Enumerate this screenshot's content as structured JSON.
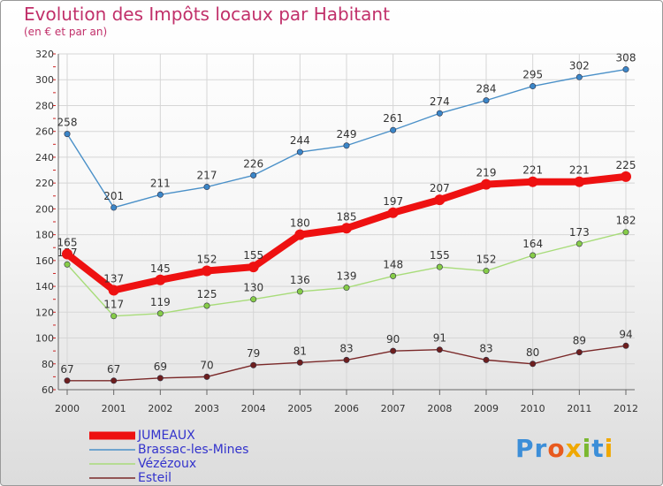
{
  "title": "Evolution des Impôts locaux par Habitant",
  "subtitle": "(en € et par an)",
  "logo": {
    "text": "Proxiti",
    "colors": [
      "#3c8ed8",
      "#3c8ed8",
      "#e85a1e",
      "#f0a800",
      "#7ab830",
      "#3c8ed8",
      "#f0a800"
    ]
  },
  "chart_data": {
    "type": "line",
    "x": [
      "2000",
      "2001",
      "2002",
      "2003",
      "2004",
      "2005",
      "2006",
      "2007",
      "2008",
      "2009",
      "2010",
      "2011",
      "2012"
    ],
    "ylim": [
      60,
      320
    ],
    "yticks": [
      "60",
      "80",
      "100",
      "120",
      "140",
      "160",
      "180",
      "200",
      "220",
      "240",
      "260",
      "280",
      "300",
      "320"
    ],
    "grid": true,
    "legend_position": "bottom-left",
    "series": [
      {
        "name": "Brassac-les-Mines",
        "color": "#4a90c8",
        "point_color": "#3b86c8",
        "values": [
          258,
          201,
          211,
          217,
          226,
          244,
          249,
          261,
          274,
          284,
          295,
          302,
          308
        ],
        "labels": [
          "258",
          "201",
          "211",
          "217",
          "226",
          "244",
          "249",
          "261",
          "274",
          "284",
          "295",
          "302",
          "308"
        ]
      },
      {
        "name": "Vézézoux",
        "color": "#a8dc7a",
        "point_color": "#86cc48",
        "values": [
          157,
          117,
          119,
          125,
          130,
          136,
          139,
          148,
          155,
          152,
          164,
          173,
          182
        ],
        "labels": [
          "157",
          "117",
          "119",
          "125",
          "130",
          "136",
          "139",
          "148",
          "155",
          "152",
          "164",
          "173",
          "182"
        ]
      },
      {
        "name": "Esteil",
        "color": "#7a2828",
        "point_color": "#6e1e1e",
        "values": [
          67,
          67,
          69,
          70,
          79,
          81,
          83,
          90,
          91,
          83,
          80,
          89,
          94
        ],
        "labels": [
          "67",
          "67",
          "69",
          "70",
          "79",
          "81",
          "83",
          "90",
          "91",
          "83",
          "80",
          "89",
          "94"
        ]
      },
      {
        "name": "JUMEAUX",
        "color": "#ee1111",
        "point_color": "#ee1111",
        "values": [
          165,
          137,
          145,
          152,
          155,
          180,
          185,
          197,
          207,
          219,
          221,
          221,
          225
        ],
        "labels": [
          "165",
          "137",
          "145",
          "152",
          "155",
          "180",
          "185",
          "197",
          "207",
          "219",
          "221",
          "221",
          "225"
        ]
      }
    ],
    "legend": [
      {
        "name": "JUMEAUX",
        "color": "#ee1111",
        "text_color": "#3333cc",
        "thick": true
      },
      {
        "name": "Brassac-les-Mines",
        "color": "#4a90c8",
        "text_color": "#3333cc",
        "thick": false
      },
      {
        "name": "Vézézoux",
        "color": "#a8dc7a",
        "text_color": "#3333cc",
        "thick": false
      },
      {
        "name": "Esteil",
        "color": "#7a2828",
        "text_color": "#3333cc",
        "thick": false
      }
    ]
  }
}
